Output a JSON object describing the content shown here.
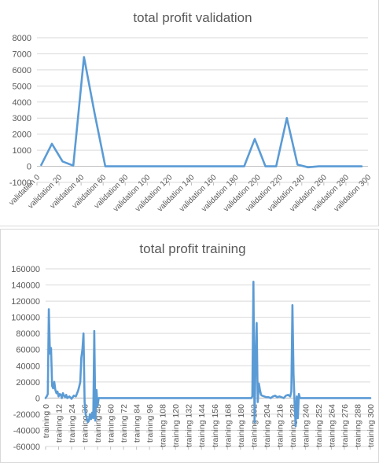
{
  "colors": {
    "series": "#5b9bd5",
    "text": "#595959",
    "grid": "#d9d9d9"
  },
  "chart_data": [
    {
      "type": "line",
      "title": "total profit validation",
      "ylim": [
        -1000,
        8000
      ],
      "yticks": [
        -1000,
        0,
        1000,
        2000,
        3000,
        4000,
        5000,
        6000,
        7000,
        8000
      ],
      "grid": true,
      "legend": "none",
      "xticklabels": [
        "validation 0",
        "validation 20",
        "validation 40",
        "validation 60",
        "validation 80",
        "validation 100",
        "validation 120",
        "validation 140",
        "validation 160",
        "validation 180",
        "validation 200",
        "validation 220",
        "validation 240",
        "validation 260",
        "validation 280",
        "validation 300"
      ],
      "series": [
        {
          "x": [
            0,
            10,
            20,
            30,
            40,
            50,
            60,
            70,
            80,
            90,
            100,
            110,
            120,
            130,
            140,
            150,
            160,
            170,
            180,
            190,
            200,
            210,
            220,
            230,
            240,
            250,
            260,
            270,
            280,
            290,
            300
          ],
          "values": [
            80,
            1400,
            300,
            40,
            6800,
            3300,
            0,
            0,
            0,
            0,
            0,
            0,
            0,
            0,
            0,
            0,
            0,
            0,
            0,
            0,
            1700,
            0,
            0,
            3000,
            100,
            -60,
            0,
            0,
            0,
            0,
            0
          ]
        }
      ]
    },
    {
      "type": "line",
      "title": "total profit training",
      "ylim": [
        -60000,
        160000
      ],
      "yticks": [
        -60000,
        -40000,
        -20000,
        0,
        20000,
        40000,
        60000,
        80000,
        100000,
        120000,
        140000,
        160000
      ],
      "grid": true,
      "legend": "none",
      "xticklabels": [
        "training 0",
        "training 12",
        "training 24",
        "training 36",
        "training 48",
        "training 60",
        "training 72",
        "training 84",
        "training 96",
        "training 108",
        "training 120",
        "training 132",
        "training 144",
        "training 156",
        "training 168",
        "training 180",
        "training 192",
        "training 204",
        "training 216",
        "training 228",
        "training 240",
        "training 252",
        "training 264",
        "training 276",
        "training 288",
        "training 300"
      ],
      "series": [
        {
          "x": [
            0,
            1,
            2,
            3,
            4,
            5,
            6,
            7,
            8,
            9,
            10,
            11,
            12,
            13,
            14,
            15,
            16,
            17,
            18,
            19,
            20,
            22,
            24,
            26,
            28,
            30,
            31,
            32,
            33,
            34,
            35,
            36,
            37,
            38,
            39,
            40,
            41,
            42,
            43,
            44,
            45,
            46,
            47,
            48,
            49,
            50,
            51,
            52,
            54,
            60,
            80,
            100,
            120,
            140,
            160,
            180,
            190,
            191,
            192,
            193,
            194,
            195,
            196,
            197,
            198,
            199,
            200,
            202,
            204,
            206,
            208,
            210,
            212,
            214,
            216,
            218,
            220,
            222,
            224,
            226,
            227,
            228,
            229,
            230,
            231,
            232,
            233,
            234,
            235,
            236,
            237,
            238,
            240,
            260,
            280,
            300
          ],
          "values": [
            0,
            2000,
            5000,
            110000,
            55000,
            62000,
            15000,
            12000,
            20000,
            10000,
            6000,
            8000,
            2000,
            5000,
            4000,
            0,
            6000,
            3000,
            1000,
            4000,
            0,
            2000,
            -1000,
            3000,
            2000,
            9000,
            14000,
            20000,
            50000,
            60000,
            80000,
            -5000,
            -20000,
            -25000,
            -30000,
            -28000,
            -20000,
            -26000,
            -18000,
            -25000,
            83000,
            -28000,
            10000,
            -10000,
            0,
            0,
            0,
            0,
            0,
            0,
            0,
            0,
            0,
            0,
            0,
            0,
            0,
            2000,
            144000,
            -30000,
            50000,
            93000,
            -5000,
            18000,
            10000,
            4000,
            3000,
            2000,
            1000,
            1000,
            0,
            2000,
            3000,
            1000,
            2000,
            1000,
            0,
            3000,
            4000,
            2000,
            8000,
            115000,
            30000,
            -5000,
            -35000,
            2000,
            -25000,
            5000,
            0,
            0,
            0,
            0,
            0,
            0,
            0,
            0
          ]
        }
      ]
    }
  ]
}
